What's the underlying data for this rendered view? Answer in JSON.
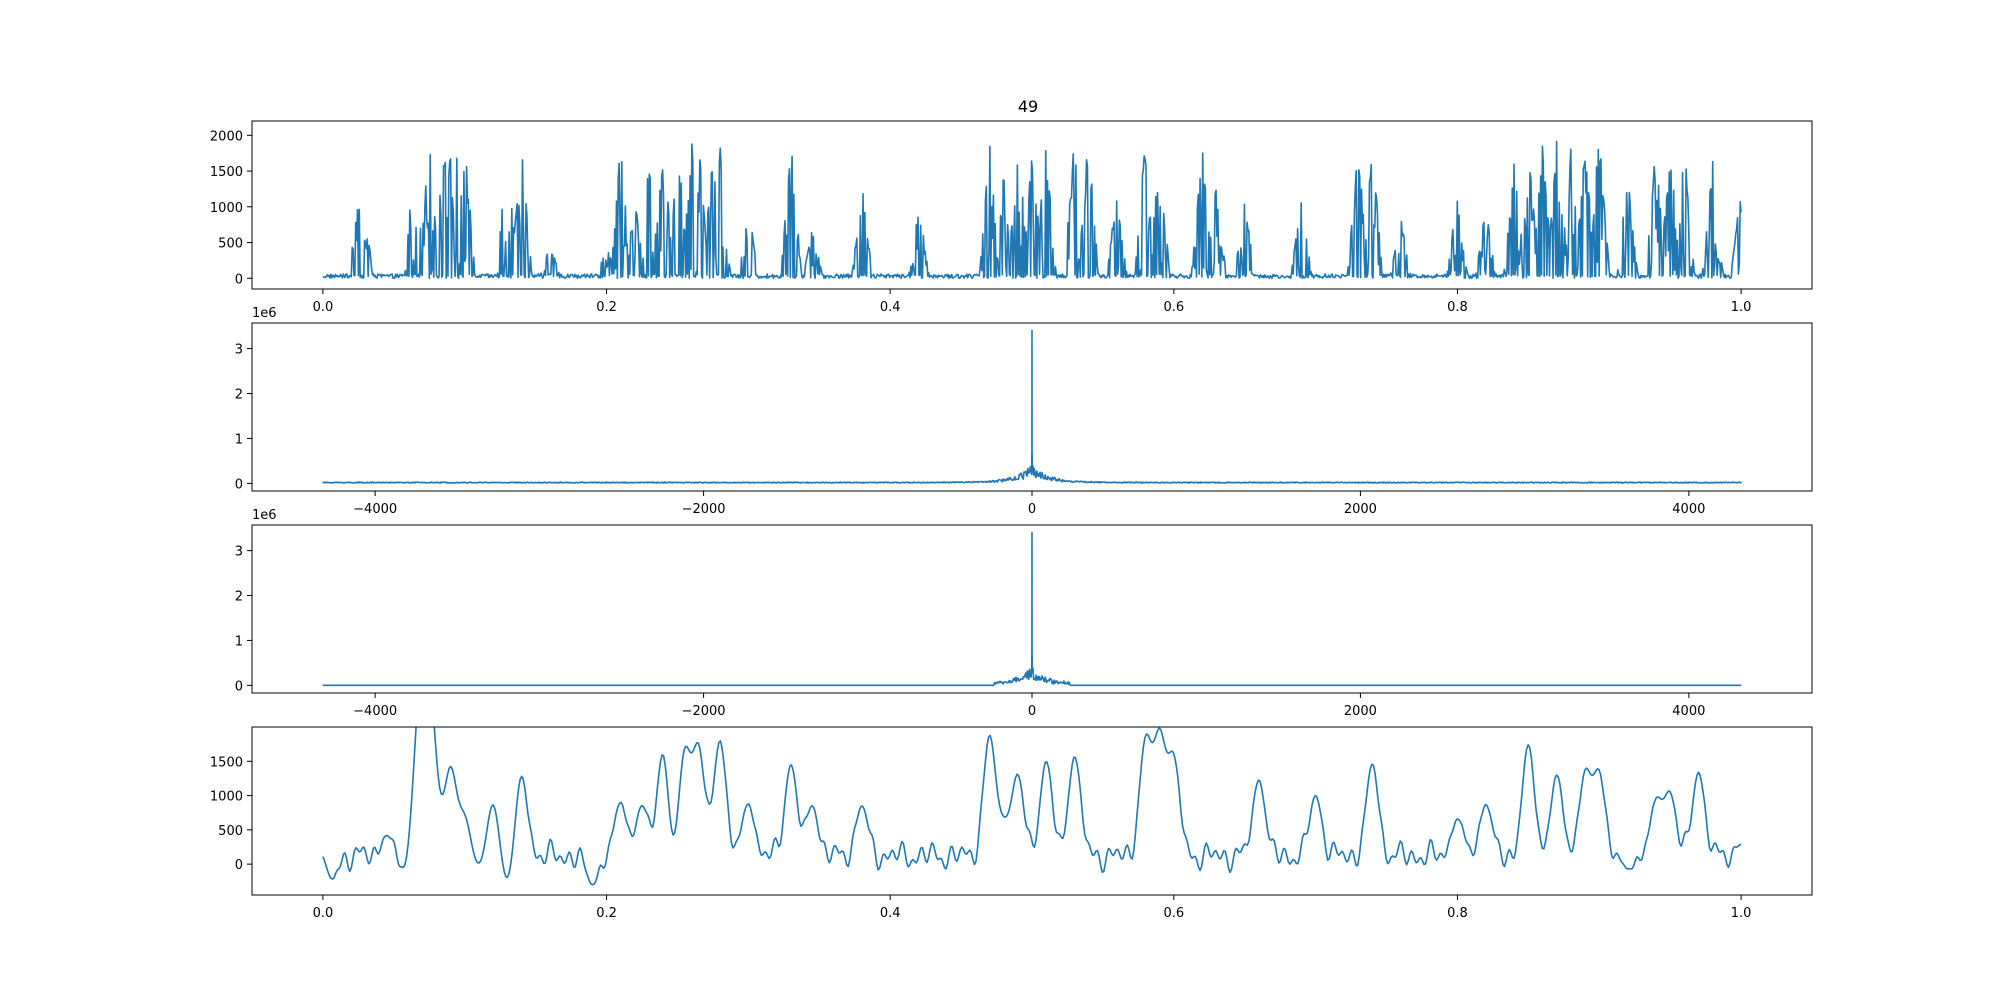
{
  "figure": {
    "title": "49"
  },
  "colors": {
    "line": "#1f77b4",
    "axes": "#000000",
    "background": "#ffffff"
  },
  "chart_data": [
    {
      "type": "line",
      "title": "49",
      "xlabel": "",
      "ylabel": "",
      "xlim": [
        -0.05,
        1.05
      ],
      "ylim": [
        -150,
        2200
      ],
      "xticks": [
        0.0,
        0.2,
        0.4,
        0.6,
        0.8,
        1.0
      ],
      "xtick_labels": [
        "0.0",
        "0.2",
        "0.4",
        "0.6",
        "0.8",
        "1.0"
      ],
      "yticks": [
        0,
        500,
        1000,
        1500,
        2000
      ],
      "ytick_labels": [
        "0",
        "500",
        "1000",
        "1500",
        "2000"
      ],
      "offset_label": "",
      "grid": false,
      "series": [
        {
          "x_range": [
            0,
            1
          ],
          "n_points": 1600,
          "peaks": [
            [
              0.025,
              1100
            ],
            [
              0.03,
              700
            ],
            [
              0.065,
              2000
            ],
            [
              0.075,
              1950
            ],
            [
              0.085,
              2000
            ],
            [
              0.09,
              1800
            ],
            [
              0.095,
              2000
            ],
            [
              0.1,
              1900
            ],
            [
              0.13,
              1950
            ],
            [
              0.14,
              1950
            ],
            [
              0.16,
              500
            ],
            [
              0.2,
              450
            ],
            [
              0.21,
              1950
            ],
            [
              0.22,
              1100
            ],
            [
              0.23,
              1700
            ],
            [
              0.24,
              2000
            ],
            [
              0.25,
              2000
            ],
            [
              0.26,
              1900
            ],
            [
              0.265,
              1950
            ],
            [
              0.275,
              1900
            ],
            [
              0.28,
              2000
            ],
            [
              0.3,
              1000
            ],
            [
              0.33,
              1950
            ],
            [
              0.345,
              700
            ],
            [
              0.38,
              1300
            ],
            [
              0.42,
              1050
            ],
            [
              0.47,
              1950
            ],
            [
              0.48,
              1500
            ],
            [
              0.49,
              2000
            ],
            [
              0.5,
              1800
            ],
            [
              0.51,
              1950
            ],
            [
              0.53,
              1950
            ],
            [
              0.54,
              2000
            ],
            [
              0.56,
              1200
            ],
            [
              0.58,
              1950
            ],
            [
              0.59,
              1950
            ],
            [
              0.62,
              1950
            ],
            [
              0.63,
              1300
            ],
            [
              0.65,
              1150
            ],
            [
              0.69,
              1200
            ],
            [
              0.73,
              1950
            ],
            [
              0.74,
              1950
            ],
            [
              0.76,
              900
            ],
            [
              0.8,
              1200
            ],
            [
              0.82,
              1000
            ],
            [
              0.84,
              1700
            ],
            [
              0.85,
              1950
            ],
            [
              0.86,
              1950
            ],
            [
              0.87,
              1950
            ],
            [
              0.88,
              1950
            ],
            [
              0.89,
              1900
            ],
            [
              0.9,
              2100
            ],
            [
              0.92,
              1500
            ],
            [
              0.94,
              1950
            ],
            [
              0.95,
              1850
            ],
            [
              0.96,
              1850
            ],
            [
              0.98,
              1700
            ],
            [
              1.0,
              1300
            ]
          ]
        }
      ]
    },
    {
      "type": "line",
      "title": "",
      "xlabel": "",
      "ylabel": "",
      "xlim": [
        -4750,
        4750
      ],
      "ylim": [
        -170000,
        3570000
      ],
      "xticks": [
        -4000,
        -2000,
        0,
        2000,
        4000
      ],
      "xtick_labels": [
        "−4000",
        "−2000",
        "0",
        "2000",
        "4000"
      ],
      "yticks": [
        0,
        1000000,
        2000000,
        3000000
      ],
      "ytick_labels": [
        "0",
        "1",
        "2",
        "3"
      ],
      "offset_label": "1e6",
      "grid": false,
      "series": [
        {
          "x_range": [
            -4320,
            4320
          ],
          "peak_at_0": 3400000,
          "secondary_peak": 760000,
          "core_amplitude": 400000,
          "noise_floor": 20000
        }
      ]
    },
    {
      "type": "line",
      "title": "",
      "xlabel": "",
      "ylabel": "",
      "xlim": [
        -4750,
        4750
      ],
      "ylim": [
        -170000,
        3570000
      ],
      "xticks": [
        -4000,
        -2000,
        0,
        2000,
        4000
      ],
      "xtick_labels": [
        "−4000",
        "−2000",
        "0",
        "2000",
        "4000"
      ],
      "yticks": [
        0,
        1000000,
        2000000,
        3000000
      ],
      "ytick_labels": [
        "0",
        "1",
        "2",
        "3"
      ],
      "offset_label": "1e6",
      "grid": false,
      "series": [
        {
          "x_range": [
            -4320,
            4320
          ],
          "peak_at_0": 3400000,
          "secondary_peak": 760000,
          "band_limit": 230,
          "core_amplitude": 380000,
          "noise_floor": 0
        }
      ]
    },
    {
      "type": "line",
      "title": "",
      "xlabel": "",
      "ylabel": "",
      "xlim": [
        -0.05,
        1.05
      ],
      "ylim": [
        -450,
        2000
      ],
      "xticks": [
        0.0,
        0.2,
        0.4,
        0.6,
        0.8,
        1.0
      ],
      "xtick_labels": [
        "0.0",
        "0.2",
        "0.4",
        "0.6",
        "0.8",
        "1.0"
      ],
      "yticks": [
        0,
        500,
        1000,
        1500
      ],
      "ytick_labels": [
        "0",
        "500",
        "1000",
        "1500"
      ],
      "offset_label": "",
      "grid": false,
      "series": [
        {
          "x_range": [
            0,
            1
          ],
          "n_points": 900,
          "peaks": [
            [
              0.0,
              270
            ],
            [
              0.005,
              -320
            ],
            [
              0.045,
              420
            ],
            [
              0.06,
              -300
            ],
            [
              0.065,
              920
            ],
            [
              0.07,
              1750
            ],
            [
              0.075,
              1800
            ],
            [
              0.08,
              490
            ],
            [
              0.09,
              1350
            ],
            [
              0.1,
              650
            ],
            [
              0.11,
              -80
            ],
            [
              0.12,
              890
            ],
            [
              0.13,
              -330
            ],
            [
              0.14,
              1300
            ],
            [
              0.19,
              -300
            ],
            [
              0.21,
              900
            ],
            [
              0.225,
              850
            ],
            [
              0.24,
              1750
            ],
            [
              0.245,
              -330
            ],
            [
              0.255,
              1600
            ],
            [
              0.265,
              1650
            ],
            [
              0.28,
              1800
            ],
            [
              0.3,
              880
            ],
            [
              0.33,
              1450
            ],
            [
              0.345,
              850
            ],
            [
              0.38,
              850
            ],
            [
              0.47,
              1850
            ],
            [
              0.48,
              500
            ],
            [
              0.49,
              1280
            ],
            [
              0.51,
              1500
            ],
            [
              0.53,
              1570
            ],
            [
              0.58,
              1760
            ],
            [
              0.59,
              1780
            ],
            [
              0.6,
              1500
            ],
            [
              0.66,
              1230
            ],
            [
              0.7,
              1000
            ],
            [
              0.74,
              1460
            ],
            [
              0.8,
              660
            ],
            [
              0.82,
              870
            ],
            [
              0.85,
              1740
            ],
            [
              0.87,
              1300
            ],
            [
              0.89,
              1300
            ],
            [
              0.9,
              1290
            ],
            [
              0.92,
              -70
            ],
            [
              0.94,
              900
            ],
            [
              0.95,
              1000
            ],
            [
              0.97,
              1340
            ],
            [
              1.0,
              290
            ]
          ]
        }
      ]
    }
  ]
}
